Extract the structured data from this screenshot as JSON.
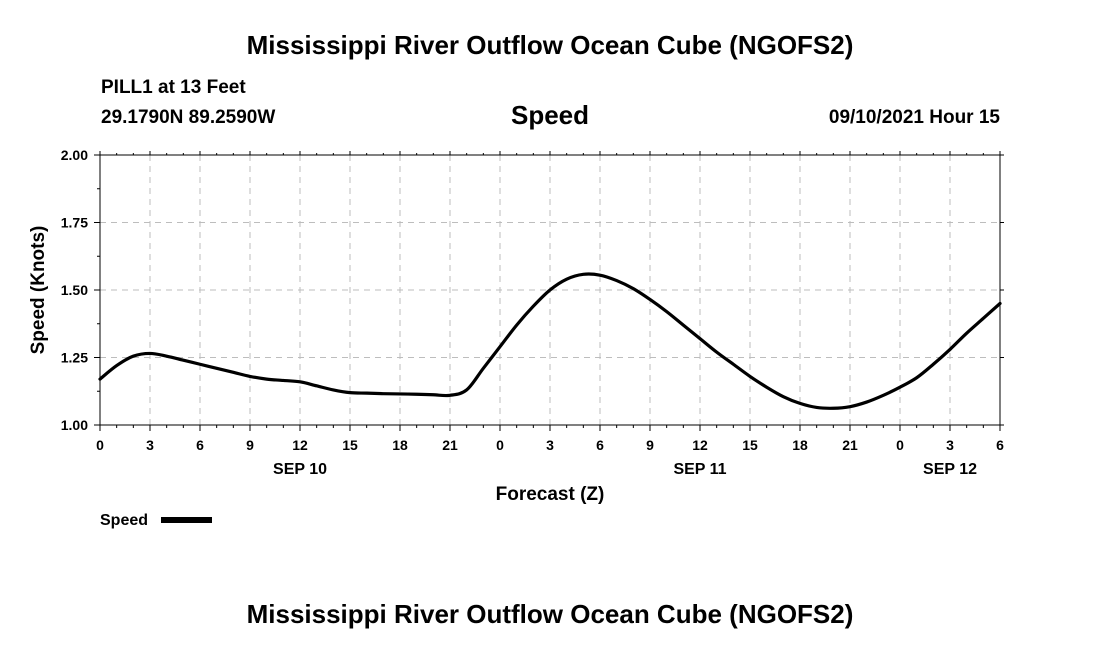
{
  "header": {
    "title": "Mississippi River Outflow Ocean Cube (NGOFS2)",
    "station": "PILL1 at 13 Feet",
    "coords": "29.1790N  89.2590W",
    "variable": "Speed",
    "datetime": "09/10/2021 Hour 15"
  },
  "footer": {
    "title": "Mississippi River Outflow Ocean Cube (NGOFS2)"
  },
  "chart_data": {
    "type": "line",
    "title": "Speed",
    "xlabel": "Forecast (Z)",
    "ylabel": "Speed (Knots)",
    "xlim": [
      0,
      54
    ],
    "ylim": [
      1.0,
      2.0
    ],
    "grid": true,
    "x_ticks": [
      0,
      3,
      6,
      9,
      12,
      15,
      18,
      21,
      24,
      27,
      30,
      33,
      36,
      39,
      42,
      45,
      48,
      51,
      54
    ],
    "x_tick_labels": [
      "0",
      "3",
      "6",
      "9",
      "12",
      "15",
      "18",
      "21",
      "0",
      "3",
      "6",
      "9",
      "12",
      "15",
      "18",
      "21",
      "0",
      "3",
      "6"
    ],
    "y_ticks": [
      1.0,
      1.25,
      1.5,
      1.75,
      2.0
    ],
    "y_tick_labels": [
      "1.00",
      "1.25",
      "1.50",
      "1.75",
      "2.00"
    ],
    "date_labels": [
      {
        "x": 12,
        "label": "SEP 10"
      },
      {
        "x": 36,
        "label": "SEP 11"
      },
      {
        "x": 51,
        "label": "SEP 12"
      }
    ],
    "legend": {
      "label": "Speed",
      "position": "bottom-left"
    },
    "series": [
      {
        "name": "Speed",
        "color": "#000000",
        "x": [
          0,
          1,
          2,
          3,
          4,
          5,
          6,
          7,
          8,
          9,
          10,
          11,
          12,
          13,
          14,
          15,
          16,
          17,
          18,
          19,
          20,
          21,
          22,
          23,
          24,
          25,
          26,
          27,
          28,
          29,
          30,
          31,
          32,
          33,
          34,
          35,
          36,
          37,
          38,
          39,
          40,
          41,
          42,
          43,
          44,
          45,
          46,
          47,
          48,
          49,
          50,
          51,
          52,
          53,
          54
        ],
        "y": [
          1.17,
          1.22,
          1.255,
          1.265,
          1.255,
          1.24,
          1.225,
          1.21,
          1.195,
          1.18,
          1.17,
          1.165,
          1.16,
          1.145,
          1.13,
          1.12,
          1.118,
          1.116,
          1.115,
          1.114,
          1.112,
          1.11,
          1.13,
          1.21,
          1.29,
          1.37,
          1.44,
          1.5,
          1.54,
          1.558,
          1.555,
          1.535,
          1.505,
          1.465,
          1.42,
          1.37,
          1.32,
          1.27,
          1.225,
          1.18,
          1.14,
          1.105,
          1.08,
          1.065,
          1.062,
          1.068,
          1.085,
          1.11,
          1.14,
          1.175,
          1.225,
          1.28,
          1.34,
          1.395,
          1.45
        ]
      }
    ]
  }
}
